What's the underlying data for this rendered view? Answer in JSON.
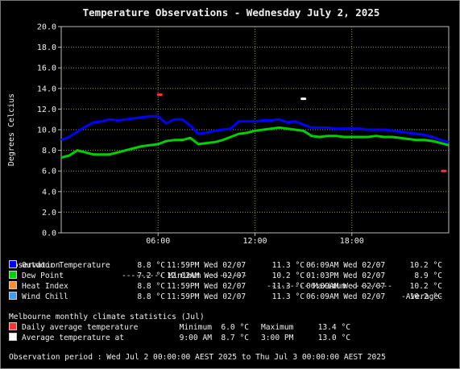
{
  "chart_data": {
    "type": "line",
    "title": "Temperature Observations - Wednesday July 2, 2025",
    "ylabel": "Degrees Celcius",
    "ylim": [
      0,
      20
    ],
    "yticks": [
      "0.0",
      "2.0",
      "4.0",
      "6.0",
      "8.0",
      "10.0",
      "12.0",
      "14.0",
      "16.0",
      "18.0",
      "20.0"
    ],
    "xlim": [
      0,
      24
    ],
    "xticks": [
      {
        "hour": 6,
        "label": "06:00"
      },
      {
        "hour": 12,
        "label": "12:00"
      },
      {
        "hour": 18,
        "label": "18:00"
      }
    ],
    "grid": true,
    "series": [
      {
        "name": "Outdoor Temperature",
        "color": "#0000ff",
        "x": [
          0,
          0.5,
          1,
          1.5,
          2,
          2.5,
          3,
          3.5,
          4,
          4.5,
          5,
          5.5,
          6,
          6.5,
          7,
          7.5,
          8,
          8.5,
          9,
          9.5,
          10,
          10.5,
          11,
          11.5,
          12,
          12.5,
          13,
          13.5,
          14,
          14.5,
          15,
          15.5,
          16,
          16.5,
          17,
          17.5,
          18,
          18.5,
          19,
          19.5,
          20,
          20.5,
          21,
          21.5,
          22,
          22.5,
          23,
          23.5,
          24
        ],
        "y": [
          9.0,
          9.3,
          9.8,
          10.3,
          10.7,
          10.8,
          11.0,
          10.9,
          11.0,
          11.1,
          11.2,
          11.3,
          11.3,
          10.6,
          11.0,
          11.0,
          10.4,
          9.6,
          9.7,
          9.9,
          10.0,
          10.1,
          10.8,
          10.8,
          10.8,
          10.9,
          10.9,
          11.0,
          10.7,
          10.8,
          10.5,
          10.2,
          10.2,
          10.2,
          10.1,
          10.1,
          10.1,
          10.1,
          10.0,
          10.0,
          10.0,
          9.9,
          9.8,
          9.7,
          9.6,
          9.5,
          9.3,
          9.0,
          8.8
        ]
      },
      {
        "name": "Dew Point",
        "color": "#00d000",
        "x": [
          0,
          0.5,
          1,
          1.5,
          2,
          2.5,
          3,
          3.5,
          4,
          4.5,
          5,
          5.5,
          6,
          6.5,
          7,
          7.5,
          8,
          8.5,
          9,
          9.5,
          10,
          10.5,
          11,
          11.5,
          12,
          12.5,
          13,
          13.5,
          14,
          14.5,
          15,
          15.5,
          16,
          16.5,
          17,
          17.5,
          18,
          18.5,
          19,
          19.5,
          20,
          20.5,
          21,
          21.5,
          22,
          22.5,
          23,
          23.5,
          24
        ],
        "y": [
          7.3,
          7.5,
          8.0,
          7.8,
          7.6,
          7.6,
          7.6,
          7.8,
          8.0,
          8.2,
          8.4,
          8.5,
          8.6,
          8.9,
          9.0,
          9.0,
          9.2,
          8.6,
          8.7,
          8.8,
          9.0,
          9.3,
          9.6,
          9.7,
          9.9,
          10.0,
          10.1,
          10.2,
          10.1,
          10.0,
          9.9,
          9.4,
          9.3,
          9.4,
          9.4,
          9.3,
          9.3,
          9.3,
          9.3,
          9.4,
          9.3,
          9.3,
          9.2,
          9.1,
          9.0,
          9.0,
          8.9,
          8.7,
          8.5
        ]
      }
    ],
    "markers": [
      {
        "name": "Daily average temperature",
        "x": 6.1,
        "y": 13.4,
        "color": "#ff3333"
      },
      {
        "name": "Average temperature at",
        "x": 15.0,
        "y": 13.0,
        "color": "#ffffff"
      },
      {
        "name": "Daily average temperature",
        "x": 23.7,
        "y": 6.0,
        "color": "#ff3333"
      }
    ]
  },
  "table": {
    "header": {
      "observation": "Observation",
      "minimum": "--------- Minimum ---------",
      "maximum": "--------- Maximum ---------",
      "average": "-Average-"
    },
    "rows": [
      {
        "label": "Outdoor Temperature",
        "color": "#0000ff",
        "min": "8.8 °C",
        "min_time": "11:59PM Wed 02/07",
        "max": "11.3 °C",
        "max_time": "06:09AM Wed 02/07",
        "avg": "10.2 °C"
      },
      {
        "label": "Dew Point",
        "color": "#00d000",
        "min": "7.2 °C",
        "min_time": "12:02AM Wed 02/07",
        "max": "10.2 °C",
        "max_time": "01:03PM Wed 02/07",
        "avg": "8.9 °C"
      },
      {
        "label": "Heat Index",
        "color": "#ff8c33",
        "min": "8.8 °C",
        "min_time": "11:59PM Wed 02/07",
        "max": "11.3 °C",
        "max_time": "06:09AM Wed 02/07",
        "avg": "10.2 °C"
      },
      {
        "label": "Wind Chill",
        "color": "#4499ee",
        "min": "8.8 °C",
        "min_time": "11:59PM Wed 02/07",
        "max": "11.3 °C",
        "max_time": "06:09AM Wed 02/07",
        "avg": "10.2 °C"
      }
    ]
  },
  "climate": {
    "title": "Melbourne monthly climate statistics (Jul)",
    "rows": [
      {
        "label": "Daily average temperature",
        "color": "#ff3333",
        "c1": "Minimum",
        "c2": "6.0 °C",
        "c3": "Maximum",
        "c4": "13.4 °C"
      },
      {
        "label": "Average temperature at",
        "color": "#ffffff",
        "c1": "9:00 AM",
        "c2": "8.7 °C",
        "c3": "3:00 PM",
        "c4": "13.0 °C"
      }
    ]
  },
  "period": "Observation period : Wed Jul 2 00:00:00 AEST 2025 to Thu Jul 3 00:00:00 AEST 2025"
}
